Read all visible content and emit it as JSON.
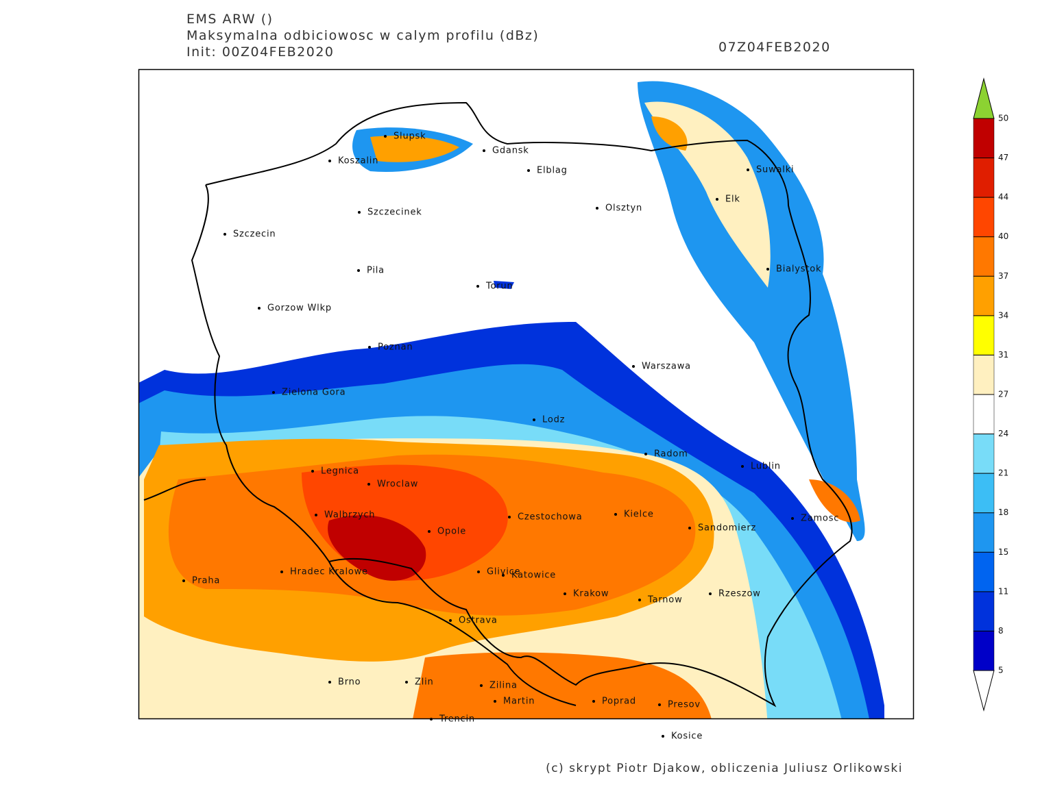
{
  "header": {
    "model": "EMS ARW ()",
    "field": "Maksymalna odbiciowosc w calym profilu (dBz)",
    "init": "Init: 00Z04FEB2020",
    "valid": "07Z04FEB2020"
  },
  "cities": [
    "Koszalin",
    "Slupsk",
    "Gdansk",
    "Elblag",
    "Suwalki",
    "Elk",
    "Szczecinek",
    "Olsztyn",
    "Szczecin",
    "Bialystok",
    "Pila",
    "Torun",
    "Gorzow Wlkp",
    "Poznan",
    "Warszawa",
    "Zielona Gora",
    "Lodz",
    "Radom",
    "Lublin",
    "Legnica",
    "Wroclaw",
    "Walbrzych",
    "Czestochowa",
    "Kielce",
    "Zamosc",
    "Opole",
    "Sandomierz",
    "Hradec Kralowe",
    "Glivice",
    "Katowice",
    "Praha",
    "Rzeszow",
    "Krakow",
    "Tarnow",
    "Ostrava",
    "Brno",
    "Zlin",
    "Zilina",
    "Martin",
    "Poprad",
    "Presov",
    "Trencin",
    "Kosice"
  ],
  "colorbar": {
    "ticks": [
      5,
      8,
      11,
      15,
      18,
      21,
      24,
      27,
      31,
      34,
      37,
      40,
      44,
      47,
      50
    ],
    "colors": [
      "#ffffff",
      "#0000c8",
      "#0032dc",
      "#0064f0",
      "#1e96f0",
      "#3cbef5",
      "#78dcf8",
      "#ffffff",
      "#fff0c0",
      "#ffff00",
      "#ffa000",
      "#ff7800",
      "#ff4600",
      "#e01e00",
      "#c00000",
      "#8cd232"
    ]
  },
  "footer": {
    "credit": "(c) skrypt Piotr Djakow, obliczenia Juliusz Orlikowski"
  }
}
